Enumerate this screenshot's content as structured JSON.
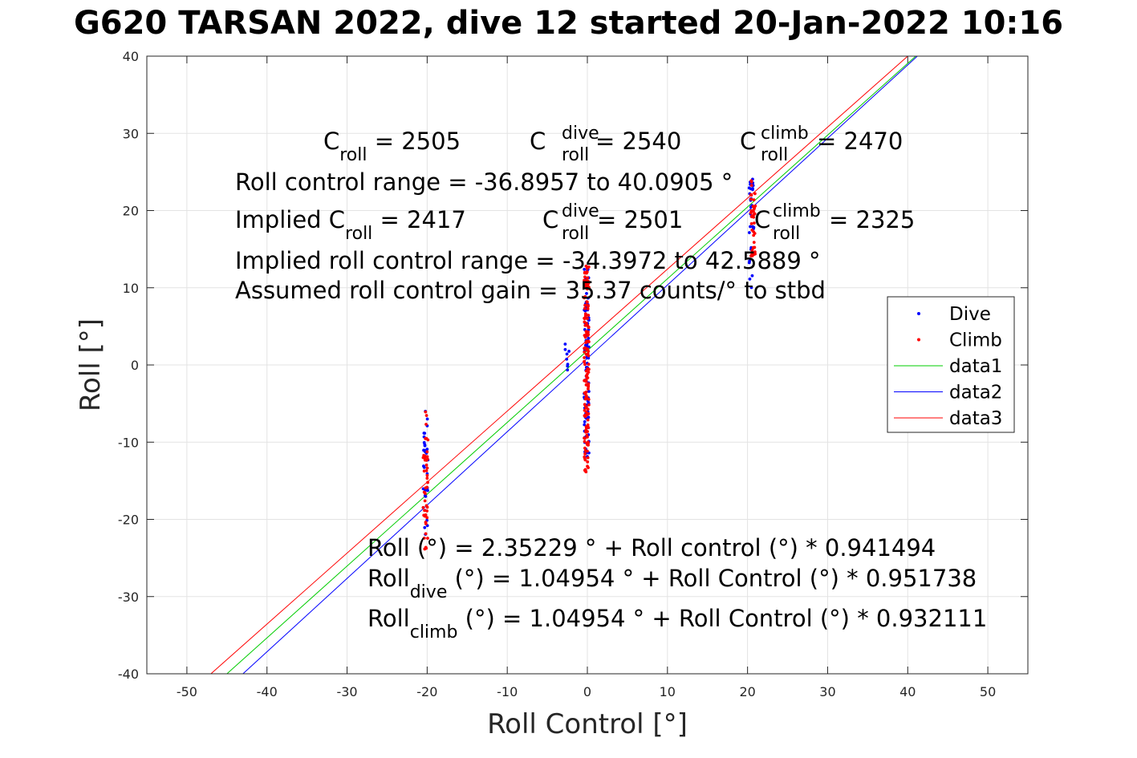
{
  "chart_data": {
    "type": "scatter",
    "title": "G620 TARSAN 2022, dive 12 started 20-Jan-2022 10:16",
    "xlabel": "Roll Control [°]",
    "ylabel": "Roll [°]",
    "xlim": [
      -55,
      55
    ],
    "ylim": [
      -40,
      40
    ],
    "xticks": [
      -50,
      -40,
      -30,
      -20,
      -10,
      0,
      10,
      20,
      30,
      40,
      50
    ],
    "yticks": [
      -40,
      -30,
      -20,
      -10,
      0,
      10,
      20,
      30,
      40
    ],
    "grid": true,
    "legend_position": "right",
    "legend": [
      {
        "label": "Dive",
        "color": "#0000ff",
        "kind": "dot"
      },
      {
        "label": "Climb",
        "color": "#ff0000",
        "kind": "dot"
      },
      {
        "label": "data1",
        "color": "#00cc00",
        "kind": "line"
      },
      {
        "label": "data2",
        "color": "#0000ff",
        "kind": "line"
      },
      {
        "label": "data3",
        "color": "#ff0000",
        "kind": "line"
      }
    ],
    "lines": [
      {
        "name": "data1",
        "color": "#00cc00",
        "x": [
          -45,
          41
        ],
        "y": [
          -40,
          40
        ]
      },
      {
        "name": "data2",
        "color": "#0000ff",
        "x": [
          -43,
          41.2
        ],
        "y": [
          -40,
          40
        ]
      },
      {
        "name": "data3",
        "color": "#ff0000",
        "x": [
          -47,
          40
        ],
        "y": [
          -40,
          40
        ]
      }
    ],
    "point_clusters": [
      {
        "series": "Dive",
        "color": "#0000ff",
        "x": -20.2,
        "y_min": -24,
        "y_max": -5.5,
        "count": 30
      },
      {
        "series": "Climb",
        "color": "#ff0000",
        "x": -20.2,
        "y_min": -24,
        "y_max": -6,
        "count": 45
      },
      {
        "series": "Dive",
        "color": "#0000ff",
        "x": -0.1,
        "y_min": -12.5,
        "y_max": 13,
        "count": 90
      },
      {
        "series": "Climb",
        "color": "#ff0000",
        "x": -0.1,
        "y_min": -14,
        "y_max": 13,
        "count": 150
      },
      {
        "series": "Dive",
        "color": "#0000ff",
        "x": -2.5,
        "y_min": -1,
        "y_max": 3,
        "count": 8
      },
      {
        "series": "Dive",
        "color": "#0000ff",
        "x": 20.5,
        "y_min": 10,
        "y_max": 24.5,
        "count": 30
      },
      {
        "series": "Climb",
        "color": "#ff0000",
        "x": 20.7,
        "y_min": 14,
        "y_max": 25,
        "count": 40
      }
    ],
    "annotations": {
      "line1": {
        "c_roll": "C",
        "sub_roll": "roll",
        "c_roll_val": " = 2505",
        "c_dive": "C",
        "sup_dive": "dive",
        "sub_dive": "roll",
        "c_dive_val": " = 2540",
        "c_climb": "C",
        "sup_climb": "climb",
        "sub_climb": "roll",
        "c_climb_val": " = 2470"
      },
      "range": "Roll control range = -36.8957 to 40.0905 °",
      "line3": {
        "implied": "Implied C",
        "sub_roll": "roll",
        "val": " = 2417",
        "c_dive": "C",
        "sup_dive": "dive",
        "sub_dive": "roll",
        "c_dive_val": " = 2501",
        "c_climb": "C",
        "sup_climb": "climb",
        "sub_climb": "roll",
        "c_climb_val": " = 2325"
      },
      "implied_range": "Implied roll control range = -34.3972 to 42.5889 °",
      "gain": "Assumed roll control gain = 35.37 counts/° to stbd",
      "fit1": "Roll (°) = 2.35229 ° + Roll control (°) * 0.941494",
      "fit2": {
        "pre": "Roll",
        "sub": "dive",
        "post": " (°) = 1.04954 ° + Roll Control (°) * 0.951738"
      },
      "fit3": {
        "pre": "Roll",
        "sub": "climb",
        "post": " (°) = 1.04954 ° + Roll Control (°) * 0.932111"
      }
    }
  }
}
